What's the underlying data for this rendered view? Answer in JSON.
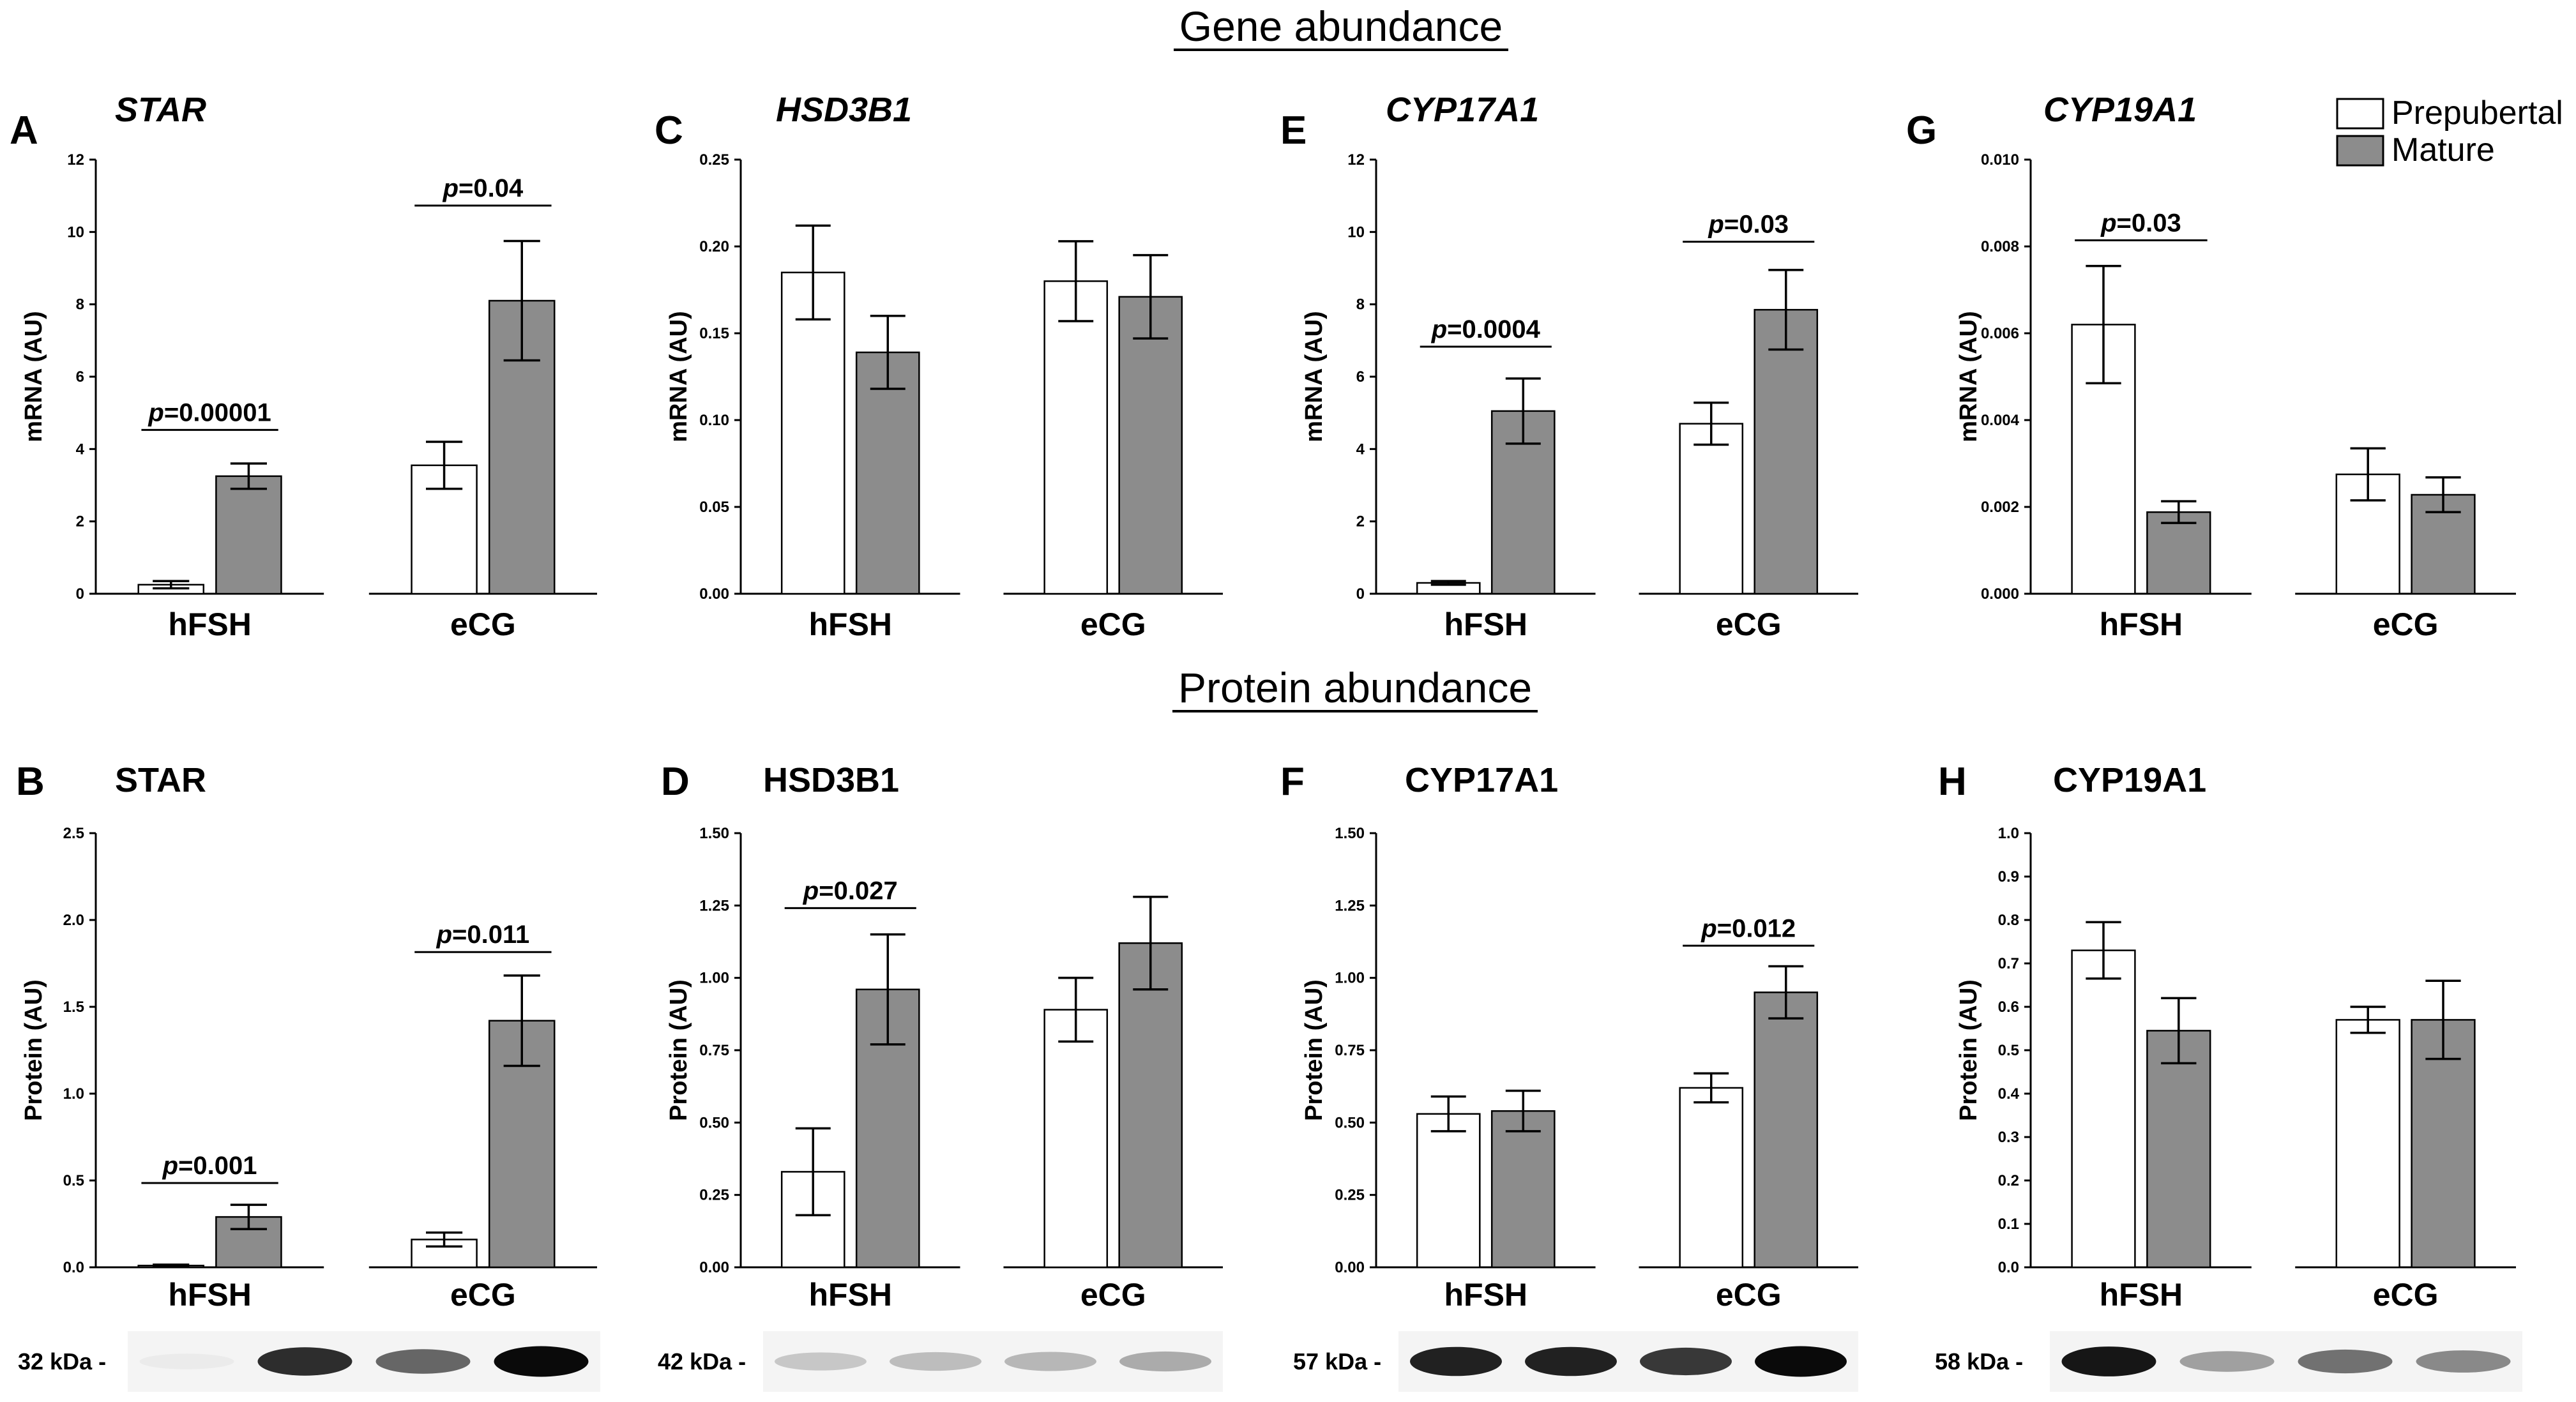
{
  "figure": {
    "section_titles": {
      "gene": "Gene abundance",
      "protein": "Protein abundance"
    },
    "legend": {
      "items": [
        {
          "label": "Prepubertal",
          "color": "#ffffff"
        },
        {
          "label": "Mature",
          "color": "#8c8c8c"
        }
      ]
    },
    "colors": {
      "prepubertal": "#ffffff",
      "mature": "#8c8c8c",
      "axis": "#000000"
    }
  },
  "chart_data": [
    {
      "panel": "A",
      "title": "STAR",
      "type": "bar",
      "ylabel": "mRNA (AU)",
      "categories": [
        "hFSH",
        "eCG"
      ],
      "ylim": [
        0,
        12
      ],
      "yticks": [
        "0",
        "2",
        "4",
        "6",
        "8",
        "10",
        "12"
      ],
      "series": [
        {
          "name": "Prepubertal",
          "values": [
            0.25,
            3.55
          ],
          "errors": [
            0.1,
            0.65
          ]
        },
        {
          "name": "Mature",
          "values": [
            3.25,
            8.1
          ],
          "errors": [
            0.35,
            1.65
          ]
        }
      ],
      "annotations": [
        {
          "category": "hFSH",
          "p": "p",
          "text": "=0.00001",
          "y": 4.6
        },
        {
          "category": "eCG",
          "p": "p",
          "text": "=0.04",
          "y": 10.8
        }
      ]
    },
    {
      "panel": "C",
      "title": "HSD3B1",
      "type": "bar",
      "ylabel": "mRNA (AU)",
      "categories": [
        "hFSH",
        "eCG"
      ],
      "ylim": [
        0,
        0.25
      ],
      "yticks": [
        "0.00",
        "0.05",
        "0.10",
        "0.15",
        "0.20",
        "0.25"
      ],
      "series": [
        {
          "name": "Prepubertal",
          "values": [
            0.185,
            0.18
          ],
          "errors": [
            0.027,
            0.023
          ]
        },
        {
          "name": "Mature",
          "values": [
            0.139,
            0.171
          ],
          "errors": [
            0.021,
            0.024
          ]
        }
      ],
      "annotations": []
    },
    {
      "panel": "E",
      "title": "CYP17A1",
      "type": "bar",
      "ylabel": "mRNA (AU)",
      "categories": [
        "hFSH",
        "eCG"
      ],
      "ylim": [
        0,
        12
      ],
      "yticks": [
        "0",
        "2",
        "4",
        "6",
        "8",
        "10",
        "12"
      ],
      "series": [
        {
          "name": "Prepubertal",
          "values": [
            0.3,
            4.7
          ],
          "errors": [
            0.05,
            0.58
          ]
        },
        {
          "name": "Mature",
          "values": [
            5.05,
            7.85
          ],
          "errors": [
            0.9,
            1.1
          ]
        }
      ],
      "annotations": [
        {
          "category": "hFSH",
          "p": "p",
          "text": "=0.0004",
          "y": 6.9
        },
        {
          "category": "eCG",
          "p": "p",
          "text": "=0.03",
          "y": 9.8
        }
      ]
    },
    {
      "panel": "G",
      "title": "CYP19A1",
      "type": "bar",
      "ylabel": "mRNA (AU)",
      "categories": [
        "hFSH",
        "eCG"
      ],
      "ylim": [
        0,
        0.01
      ],
      "yticks": [
        "0.000",
        "0.002",
        "0.004",
        "0.006",
        "0.008",
        "0.010"
      ],
      "series": [
        {
          "name": "Prepubertal",
          "values": [
            0.0062,
            0.00275
          ],
          "errors": [
            0.00135,
            0.0006
          ]
        },
        {
          "name": "Mature",
          "values": [
            0.00188,
            0.00228
          ],
          "errors": [
            0.00025,
            0.0004
          ]
        }
      ],
      "annotations": [
        {
          "category": "hFSH",
          "p": "p",
          "text": "=0.03",
          "y": 0.0082
        }
      ]
    },
    {
      "panel": "B",
      "title": "STAR",
      "type": "bar",
      "ylabel": "Protein (AU)",
      "categories": [
        "hFSH",
        "eCG"
      ],
      "ylim": [
        0,
        2.5
      ],
      "yticks": [
        "0.0",
        "0.5",
        "1.0",
        "1.5",
        "2.0",
        "2.5"
      ],
      "series": [
        {
          "name": "Prepubertal",
          "values": [
            0.01,
            0.16
          ],
          "errors": [
            0.005,
            0.04
          ]
        },
        {
          "name": "Mature",
          "values": [
            0.29,
            1.42
          ],
          "errors": [
            0.07,
            0.26
          ]
        }
      ],
      "annotations": [
        {
          "category": "hFSH",
          "p": "p",
          "text": "=0.001",
          "y": 0.5
        },
        {
          "category": "eCG",
          "p": "p",
          "text": "=0.011",
          "y": 1.83
        }
      ]
    },
    {
      "panel": "D",
      "title": "HSD3B1",
      "type": "bar",
      "ylabel": "Protein (AU)",
      "categories": [
        "hFSH",
        "eCG"
      ],
      "ylim": [
        0,
        1.5
      ],
      "yticks": [
        "0.00",
        "0.25",
        "0.50",
        "0.75",
        "1.00",
        "1.25",
        "1.50"
      ],
      "series": [
        {
          "name": "Prepubertal",
          "values": [
            0.33,
            0.89
          ],
          "errors": [
            0.15,
            0.11
          ]
        },
        {
          "name": "Mature",
          "values": [
            0.96,
            1.12
          ],
          "errors": [
            0.19,
            0.16
          ]
        }
      ],
      "annotations": [
        {
          "category": "hFSH",
          "p": "p",
          "text": "=0.027",
          "y": 1.25
        }
      ]
    },
    {
      "panel": "F",
      "title": "CYP17A1",
      "type": "bar",
      "ylabel": "Protein (AU)",
      "categories": [
        "hFSH",
        "eCG"
      ],
      "ylim": [
        0,
        1.5
      ],
      "yticks": [
        "0.00",
        "0.25",
        "0.50",
        "0.75",
        "1.00",
        "1.25",
        "1.50"
      ],
      "series": [
        {
          "name": "Prepubertal",
          "values": [
            0.53,
            0.62
          ],
          "errors": [
            0.06,
            0.05
          ]
        },
        {
          "name": "Mature",
          "values": [
            0.54,
            0.95
          ],
          "errors": [
            0.07,
            0.09
          ]
        }
      ],
      "annotations": [
        {
          "category": "eCG",
          "p": "p",
          "text": "=0.012",
          "y": 1.12
        }
      ]
    },
    {
      "panel": "H",
      "title": "CYP19A1",
      "type": "bar",
      "ylabel": "Protein (AU)",
      "categories": [
        "hFSH",
        "eCG"
      ],
      "ylim": [
        0,
        1.0
      ],
      "yticks": [
        "0.0",
        "0.1",
        "0.2",
        "0.3",
        "0.4",
        "0.5",
        "0.6",
        "0.7",
        "0.8",
        "0.9",
        "1.0"
      ],
      "series": [
        {
          "name": "Prepubertal",
          "values": [
            0.73,
            0.57
          ],
          "errors": [
            0.065,
            0.03
          ]
        },
        {
          "name": "Mature",
          "values": [
            0.545,
            0.57
          ],
          "errors": [
            0.075,
            0.09
          ]
        }
      ],
      "annotations": []
    }
  ],
  "blots": [
    {
      "panel": "B",
      "label": "32 kDa -",
      "bands": [
        0.02,
        0.85,
        0.6,
        1.0
      ]
    },
    {
      "panel": "D",
      "label": "42 kDa -",
      "bands": [
        0.18,
        0.22,
        0.25,
        0.3
      ]
    },
    {
      "panel": "F",
      "label": "57 kDa -",
      "bands": [
        0.9,
        0.9,
        0.8,
        1.0
      ]
    },
    {
      "panel": "H",
      "label": "58 kDa -",
      "bands": [
        0.95,
        0.35,
        0.55,
        0.45
      ]
    }
  ]
}
